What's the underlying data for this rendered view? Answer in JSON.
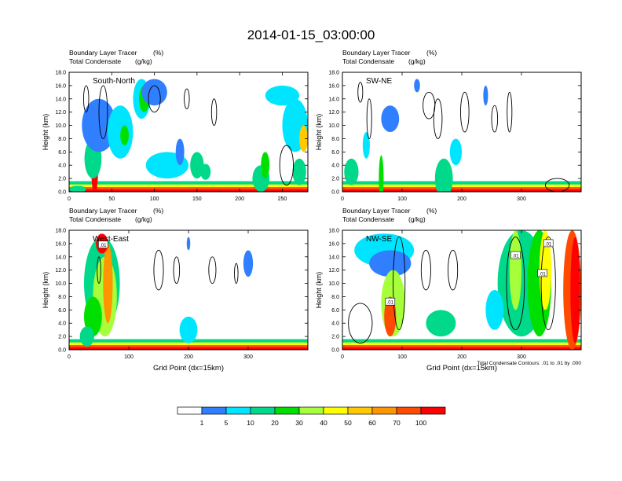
{
  "figure": {
    "title": "2014-01-15_03:00:00",
    "contour_note": "Total Condensate Contours: .01 to .01 by .000",
    "xlabel": "Grid Point (dx=15km)"
  },
  "colorbar": {
    "colors": [
      "#ffffff",
      "#2f7fff",
      "#00e5ff",
      "#00d98a",
      "#00e000",
      "#a6ff3a",
      "#ffff00",
      "#ffc800",
      "#ff9600",
      "#ff4a00",
      "#ff0000"
    ],
    "tick_labels": [
      "1",
      "5",
      "10",
      "20",
      "30",
      "40",
      "50",
      "60",
      "70",
      "100"
    ]
  },
  "chart_data": [
    {
      "type": "heatmap",
      "panel": "South-North",
      "field_label": "Boundary Layer Tracer",
      "field_unit": "(%)",
      "contour_label": "Total Condensate",
      "contour_unit": "(g/kg)",
      "ylabel": "Height (km)",
      "xlabel": "",
      "xlim": [
        0,
        280
      ],
      "ylim": [
        0,
        18
      ],
      "xticks": [
        0,
        50,
        100,
        150,
        200,
        250
      ],
      "yticks": [
        "0.0",
        "2.0",
        "4.0",
        "6.0",
        "8.0",
        "10.0",
        "12.0",
        "14.0",
        "16.0",
        "18.0"
      ],
      "contour_labels": [],
      "blobs": [
        {
          "x": 10,
          "y": 0.4,
          "rx": 10,
          "ry": 0.5,
          "c": 3
        },
        {
          "x": 30,
          "y": 3.5,
          "rx": 4,
          "ry": 3.8,
          "c": 10
        },
        {
          "x": 28,
          "y": 5,
          "rx": 10,
          "ry": 3,
          "c": 3
        },
        {
          "x": 35,
          "y": 10,
          "rx": 20,
          "ry": 4,
          "c": 1
        },
        {
          "x": 60,
          "y": 9,
          "rx": 15,
          "ry": 4,
          "c": 2
        },
        {
          "x": 65,
          "y": 8.5,
          "rx": 5,
          "ry": 1.5,
          "c": 4
        },
        {
          "x": 85,
          "y": 14,
          "rx": 10,
          "ry": 3,
          "c": 2
        },
        {
          "x": 88,
          "y": 14,
          "rx": 6,
          "ry": 2,
          "c": 4
        },
        {
          "x": 100,
          "y": 15,
          "rx": 15,
          "ry": 2,
          "c": 1
        },
        {
          "x": 115,
          "y": 4,
          "rx": 25,
          "ry": 2,
          "c": 2
        },
        {
          "x": 130,
          "y": 6,
          "rx": 5,
          "ry": 2,
          "c": 1
        },
        {
          "x": 150,
          "y": 4,
          "rx": 8,
          "ry": 2,
          "c": 3
        },
        {
          "x": 160,
          "y": 3,
          "rx": 6,
          "ry": 1.2,
          "c": 3
        },
        {
          "x": 225,
          "y": 2,
          "rx": 10,
          "ry": 2,
          "c": 3
        },
        {
          "x": 230,
          "y": 4,
          "rx": 5,
          "ry": 2,
          "c": 4
        },
        {
          "x": 250,
          "y": 14.5,
          "rx": 20,
          "ry": 1.5,
          "c": 2
        },
        {
          "x": 265,
          "y": 10,
          "rx": 15,
          "ry": 4,
          "c": 2
        },
        {
          "x": 275,
          "y": 8,
          "rx": 5,
          "ry": 2,
          "c": 7
        },
        {
          "x": 270,
          "y": 3,
          "rx": 8,
          "ry": 2,
          "c": 3
        }
      ],
      "contours": [
        {
          "x": 20,
          "y": 14,
          "rx": 3,
          "ry": 2
        },
        {
          "x": 40,
          "y": 12,
          "rx": 5,
          "ry": 4
        },
        {
          "x": 100,
          "y": 14,
          "rx": 7,
          "ry": 2
        },
        {
          "x": 138,
          "y": 14,
          "rx": 3,
          "ry": 1.5
        },
        {
          "x": 170,
          "y": 12,
          "rx": 3,
          "ry": 2
        },
        {
          "x": 255,
          "y": 4,
          "rx": 8,
          "ry": 3
        }
      ]
    },
    {
      "type": "heatmap",
      "panel": "SW-NE",
      "field_label": "Boundary Layer Tracer",
      "field_unit": "(%)",
      "contour_label": "Total Condensate",
      "contour_unit": "(g/kg)",
      "ylabel": "Height (km)",
      "xlabel": "",
      "xlim": [
        0,
        400
      ],
      "ylim": [
        0,
        18
      ],
      "xticks": [
        0,
        100,
        200,
        300
      ],
      "yticks": [
        "0.0",
        "2.0",
        "4.0",
        "6.0",
        "8.0",
        "10.0",
        "12.0",
        "14.0",
        "16.0",
        "18.0"
      ],
      "contour_labels": [],
      "blobs": [
        {
          "x": 15,
          "y": 3,
          "rx": 12,
          "ry": 2,
          "c": 3
        },
        {
          "x": 40,
          "y": 7,
          "rx": 6,
          "ry": 2,
          "c": 2
        },
        {
          "x": 65,
          "y": 2,
          "rx": 4,
          "ry": 3.5,
          "c": 4
        },
        {
          "x": 80,
          "y": 11,
          "rx": 15,
          "ry": 2,
          "c": 1
        },
        {
          "x": 125,
          "y": 16,
          "rx": 5,
          "ry": 1,
          "c": 1
        },
        {
          "x": 170,
          "y": 2,
          "rx": 15,
          "ry": 3,
          "c": 3
        },
        {
          "x": 190,
          "y": 6,
          "rx": 10,
          "ry": 2,
          "c": 2
        },
        {
          "x": 240,
          "y": 14.5,
          "rx": 4,
          "ry": 1.5,
          "c": 1
        }
      ],
      "contours": [
        {
          "x": 30,
          "y": 15,
          "rx": 4,
          "ry": 1.5
        },
        {
          "x": 45,
          "y": 11,
          "rx": 4,
          "ry": 3
        },
        {
          "x": 145,
          "y": 13,
          "rx": 10,
          "ry": 2
        },
        {
          "x": 160,
          "y": 11,
          "rx": 7,
          "ry": 3
        },
        {
          "x": 205,
          "y": 12,
          "rx": 7,
          "ry": 3
        },
        {
          "x": 255,
          "y": 11,
          "rx": 5,
          "ry": 2
        },
        {
          "x": 280,
          "y": 12,
          "rx": 4,
          "ry": 3
        },
        {
          "x": 360,
          "y": 1,
          "rx": 20,
          "ry": 1
        }
      ]
    },
    {
      "type": "heatmap",
      "panel": "West-East",
      "field_label": "Boundary Layer Tracer",
      "field_unit": "(%)",
      "contour_label": "Total Condensate",
      "contour_unit": "(g/kg)",
      "ylabel": "Height (km)",
      "xlabel": "Grid Point (dx=15km)",
      "xlim": [
        0,
        400
      ],
      "ylim": [
        0,
        18
      ],
      "xticks": [
        0,
        100,
        200,
        300
      ],
      "yticks": [
        "0.0",
        "2.0",
        "4.0",
        "6.0",
        "8.0",
        "10.0",
        "12.0",
        "14.0",
        "16.0",
        "18.0"
      ],
      "contour_labels": [
        {
          "x": 57,
          "y": 15.8,
          "text": ".01"
        }
      ],
      "blobs": [
        {
          "x": 55,
          "y": 10,
          "rx": 30,
          "ry": 7,
          "c": 3
        },
        {
          "x": 60,
          "y": 8,
          "rx": 20,
          "ry": 6,
          "c": 5
        },
        {
          "x": 65,
          "y": 10,
          "rx": 8,
          "ry": 6,
          "c": 8
        },
        {
          "x": 55,
          "y": 16,
          "rx": 10,
          "ry": 1.5,
          "c": 10
        },
        {
          "x": 40,
          "y": 5,
          "rx": 15,
          "ry": 3,
          "c": 4
        },
        {
          "x": 30,
          "y": 2,
          "rx": 12,
          "ry": 1.5,
          "c": 3
        },
        {
          "x": 200,
          "y": 3,
          "rx": 15,
          "ry": 2,
          "c": 2
        },
        {
          "x": 300,
          "y": 13,
          "rx": 8,
          "ry": 2,
          "c": 1
        },
        {
          "x": 200,
          "y": 16,
          "rx": 3,
          "ry": 1,
          "c": 1
        }
      ],
      "contours": [
        {
          "x": 50,
          "y": 12,
          "rx": 3,
          "ry": 2
        },
        {
          "x": 150,
          "y": 12,
          "rx": 8,
          "ry": 3
        },
        {
          "x": 180,
          "y": 12,
          "rx": 5,
          "ry": 2
        },
        {
          "x": 240,
          "y": 12,
          "rx": 6,
          "ry": 2
        },
        {
          "x": 280,
          "y": 11.5,
          "rx": 3,
          "ry": 1.5
        }
      ]
    },
    {
      "type": "heatmap",
      "panel": "NW-SE",
      "field_label": "Boundary Layer Tracer",
      "field_unit": "(%)",
      "contour_label": "Total Condensate",
      "contour_unit": "(g/kg)",
      "ylabel": "Height (km)",
      "xlabel": "Grid Point (dx=15km)",
      "xlim": [
        0,
        400
      ],
      "ylim": [
        0,
        18
      ],
      "xticks": [
        0,
        100,
        200,
        300
      ],
      "yticks": [
        "0.0",
        "2.0",
        "4.0",
        "6.0",
        "8.0",
        "10.0",
        "12.0",
        "14.0",
        "16.0",
        "18.0"
      ],
      "contour_labels": [
        {
          "x": 80,
          "y": 7.2,
          "text": ".01"
        },
        {
          "x": 290,
          "y": 14.2,
          "text": ".01"
        },
        {
          "x": 345,
          "y": 16,
          "text": ".01"
        },
        {
          "x": 335,
          "y": 11.5,
          "text": ".01"
        }
      ],
      "blobs": [
        {
          "x": 70,
          "y": 15,
          "rx": 50,
          "ry": 2.5,
          "c": 2
        },
        {
          "x": 80,
          "y": 13,
          "rx": 35,
          "ry": 2,
          "c": 1
        },
        {
          "x": 85,
          "y": 7,
          "rx": 20,
          "ry": 5,
          "c": 5
        },
        {
          "x": 80,
          "y": 5,
          "rx": 10,
          "ry": 3,
          "c": 9
        },
        {
          "x": 165,
          "y": 4,
          "rx": 25,
          "ry": 2,
          "c": 3
        },
        {
          "x": 300,
          "y": 10,
          "rx": 40,
          "ry": 8,
          "c": 3
        },
        {
          "x": 290,
          "y": 12,
          "rx": 10,
          "ry": 6,
          "c": 5
        },
        {
          "x": 330,
          "y": 10,
          "rx": 20,
          "ry": 8,
          "c": 4
        },
        {
          "x": 340,
          "y": 12,
          "rx": 10,
          "ry": 6,
          "c": 6
        },
        {
          "x": 385,
          "y": 9,
          "rx": 15,
          "ry": 9,
          "c": 9
        },
        {
          "x": 390,
          "y": 9,
          "rx": 8,
          "ry": 8,
          "c": 10
        },
        {
          "x": 255,
          "y": 6,
          "rx": 15,
          "ry": 3,
          "c": 2
        }
      ],
      "contours": [
        {
          "x": 30,
          "y": 4,
          "rx": 20,
          "ry": 3
        },
        {
          "x": 95,
          "y": 10,
          "rx": 10,
          "ry": 7
        },
        {
          "x": 140,
          "y": 12,
          "rx": 8,
          "ry": 3
        },
        {
          "x": 185,
          "y": 12,
          "rx": 8,
          "ry": 3
        },
        {
          "x": 290,
          "y": 10,
          "rx": 15,
          "ry": 7
        },
        {
          "x": 345,
          "y": 10,
          "rx": 12,
          "ry": 7
        }
      ]
    }
  ]
}
